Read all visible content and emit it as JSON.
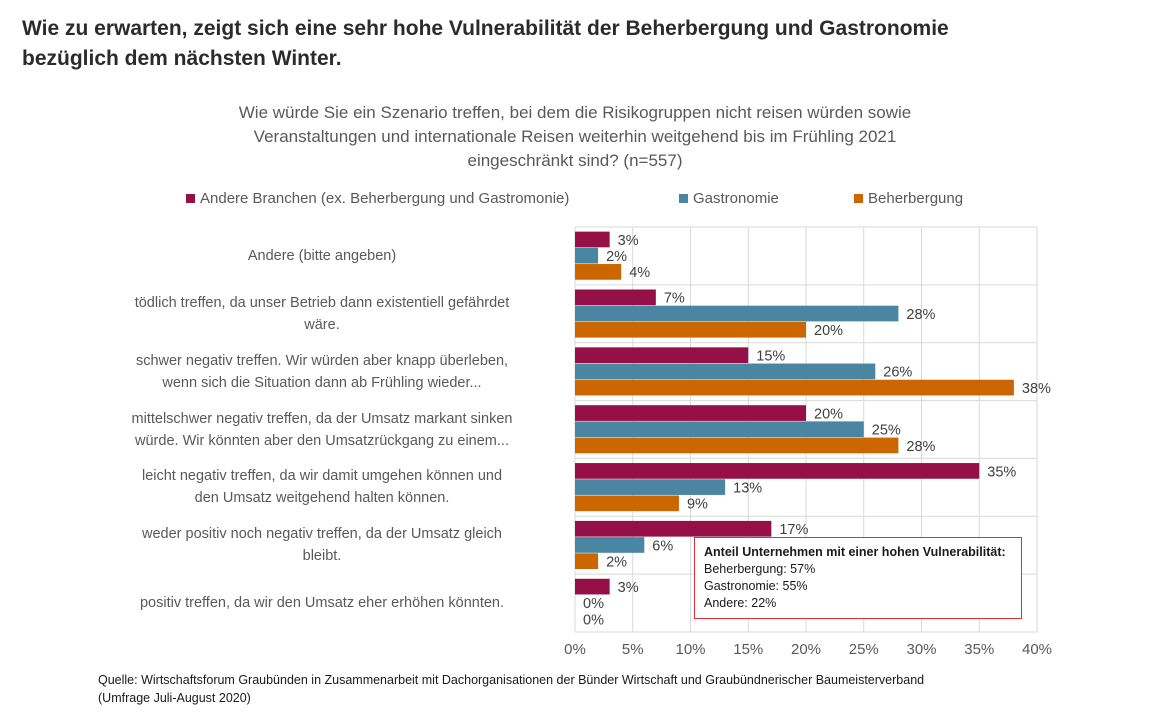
{
  "headline": {
    "line1": "Wie zu erwarten, zeigt sich eine sehr hohe Vulnerabilität der Beherbergung und Gastronomie",
    "line2": "bezüglich dem nächsten Winter."
  },
  "callout": {
    "title": "Anteil Unternehmen mit einer hohen Vulnerabilität:",
    "lines": [
      "Beherbergung: 57%",
      "Gastronomie: 55%",
      "Andere: 22%"
    ],
    "border_color": "#e03030"
  },
  "source": {
    "line1": "Quelle: Wirtschaftsforum Graubünden in Zusammenarbeit mit Dachorganisationen der Bünder Wirtschaft und Graubündnerischer Baumeisterverband",
    "line2": "(Umfrage Juli-August 2020)"
  },
  "chart_data": {
    "type": "bar",
    "orientation": "horizontal",
    "title_lines": [
      "Wie würde Sie ein Szenario treffen, bei dem die Risikogruppen nicht reisen würden sowie",
      "Veranstaltungen und internationale Reisen weiterhin weitgehend bis im Frühling 2021",
      "eingeschränkt sind? (n=557)"
    ],
    "categories": [
      [
        "Andere (bitte angeben)"
      ],
      [
        "tödlich treffen, da unser Betrieb dann existentiell gefährdet",
        "wäre."
      ],
      [
        "schwer negativ treffen. Wir würden aber knapp überleben,",
        "wenn sich die Situation dann ab Frühling wieder..."
      ],
      [
        "mittelschwer negativ treffen, da der Umsatz markant sinken",
        "würde. Wir könnten aber den Umsatzrückgang zu einem..."
      ],
      [
        "leicht negativ treffen, da wir damit umgehen können und",
        "den Umsatz weitgehend halten können."
      ],
      [
        "weder positiv noch negativ treffen, da der Umsatz gleich",
        "bleibt."
      ],
      [
        "positiv treffen, da wir den Umsatz eher erhöhen könnten."
      ]
    ],
    "series": [
      {
        "name": "Andere Branchen (ex. Beherbergung und Gastromonie)",
        "color": "#951046",
        "values": [
          3,
          7,
          15,
          20,
          35,
          17,
          3
        ]
      },
      {
        "name": "Gastronomie",
        "color": "#4a86a2",
        "values": [
          2,
          28,
          26,
          25,
          13,
          6,
          0
        ]
      },
      {
        "name": "Beherbergung",
        "color": "#cc6600",
        "values": [
          4,
          20,
          38,
          28,
          9,
          2,
          0
        ]
      }
    ],
    "value_suffix": "%",
    "xlim": [
      0,
      40
    ],
    "xticks": [
      0,
      5,
      10,
      15,
      20,
      25,
      30,
      35,
      40
    ],
    "xtick_labels": [
      "0%",
      "5%",
      "10%",
      "15%",
      "20%",
      "25%",
      "30%",
      "35%",
      "40%"
    ],
    "grid": true,
    "legend_position": "top",
    "xlabel": "",
    "ylabel": ""
  }
}
